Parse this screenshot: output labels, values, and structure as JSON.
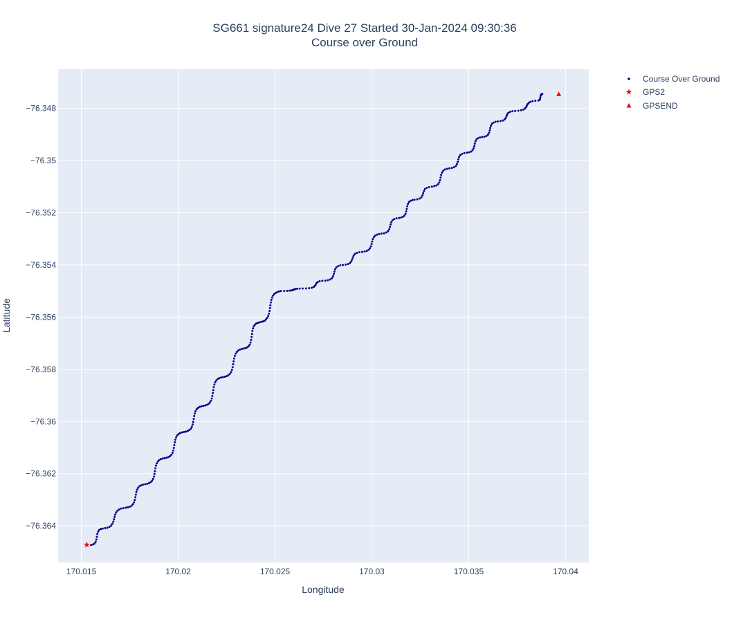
{
  "chart_data": {
    "type": "scatter",
    "title_line1": "SG661 signature24 Dive 27 Started 30-Jan-2024 09:30:36",
    "title_line2": "Course over Ground",
    "xlabel": "Longitude",
    "ylabel": "Latitude",
    "xlim": [
      170.0138,
      170.0412
    ],
    "ylim": [
      -76.3654,
      -76.3465
    ],
    "x_ticks": [
      170.015,
      170.02,
      170.025,
      170.03,
      170.035,
      170.04
    ],
    "x_tick_labels": [
      "170.015",
      "170.02",
      "170.025",
      "170.03",
      "170.035",
      "170.04"
    ],
    "y_ticks": [
      -76.348,
      -76.35,
      -76.352,
      -76.354,
      -76.356,
      -76.358,
      -76.36,
      -76.362,
      -76.364
    ],
    "y_tick_labels": [
      "−76.348",
      "−76.35",
      "−76.352",
      "−76.354",
      "−76.356",
      "−76.358",
      "−76.36",
      "−76.362",
      "−76.364"
    ],
    "grid": true,
    "legend_position": "top-right outside",
    "colors": {
      "plot_background": "#e5ecf6",
      "grid": "#ffffff",
      "course_marker": "#00008b",
      "gps_marker": "#ff0000",
      "text": "#2a3f5f"
    },
    "series": [
      {
        "name": "Course Over Ground",
        "marker": "dot",
        "start": [
          170.0155,
          -76.36473
        ],
        "knots": [
          [
            170.0161,
            -76.3641
          ],
          [
            170.0173,
            -76.3633
          ],
          [
            170.0183,
            -76.3624
          ],
          [
            170.0193,
            -76.3614
          ],
          [
            170.0203,
            -76.3604
          ],
          [
            170.0213,
            -76.3594
          ],
          [
            170.0223,
            -76.3583
          ],
          [
            170.0234,
            -76.3572
          ],
          [
            170.0242,
            -76.3562
          ],
          [
            170.0253,
            -76.355
          ],
          [
            170.0266,
            -76.3549
          ],
          [
            170.0276,
            -76.3546
          ],
          [
            170.0285,
            -76.354
          ],
          [
            170.0295,
            -76.3535
          ],
          [
            170.0305,
            -76.3528
          ],
          [
            170.0314,
            -76.3522
          ],
          [
            170.0322,
            -76.3515
          ],
          [
            170.0331,
            -76.351
          ],
          [
            170.034,
            -76.3503
          ],
          [
            170.0349,
            -76.3497
          ],
          [
            170.0357,
            -76.3491
          ],
          [
            170.0365,
            -76.3485
          ],
          [
            170.0374,
            -76.3481
          ],
          [
            170.0386,
            -76.3477
          ],
          [
            170.0388,
            -76.34745
          ]
        ]
      },
      {
        "name": "GPS2",
        "marker": "star",
        "points": [
          [
            170.01528,
            -76.36472
          ]
        ]
      },
      {
        "name": "GPSEND",
        "marker": "triangle-up",
        "points": [
          [
            170.03965,
            -76.34745
          ]
        ]
      }
    ]
  }
}
